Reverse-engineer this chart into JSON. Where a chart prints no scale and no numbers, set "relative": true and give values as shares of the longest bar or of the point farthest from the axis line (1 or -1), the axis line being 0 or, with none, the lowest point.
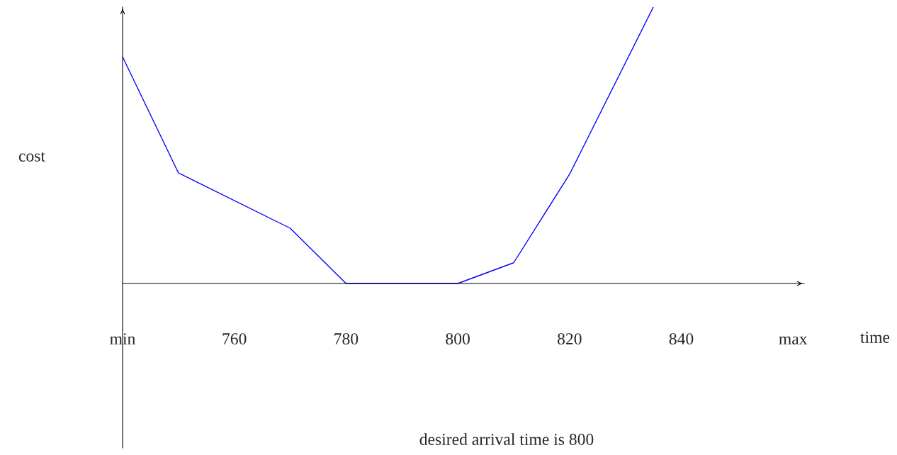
{
  "chart_data": {
    "type": "line",
    "relative": true,
    "x": [
      740,
      750,
      770,
      780,
      800,
      810,
      820,
      835
    ],
    "series": [
      {
        "color": "#0000ff",
        "values": [
          0.82,
          0.4,
          0.2,
          0,
          0,
          0.075,
          0.395,
          1
        ]
      }
    ],
    "xlim": [
      740,
      862
    ],
    "xticks": [
      {
        "value": 740,
        "label": "min"
      },
      760,
      780,
      800,
      820,
      840,
      {
        "value": 860,
        "label": "max"
      }
    ],
    "xlabel": "time",
    "ylabel": "cost",
    "annotations": [
      "desired arrival time is 800"
    ],
    "grid": false,
    "legend": false,
    "marker": "none",
    "line_style": "solid"
  }
}
